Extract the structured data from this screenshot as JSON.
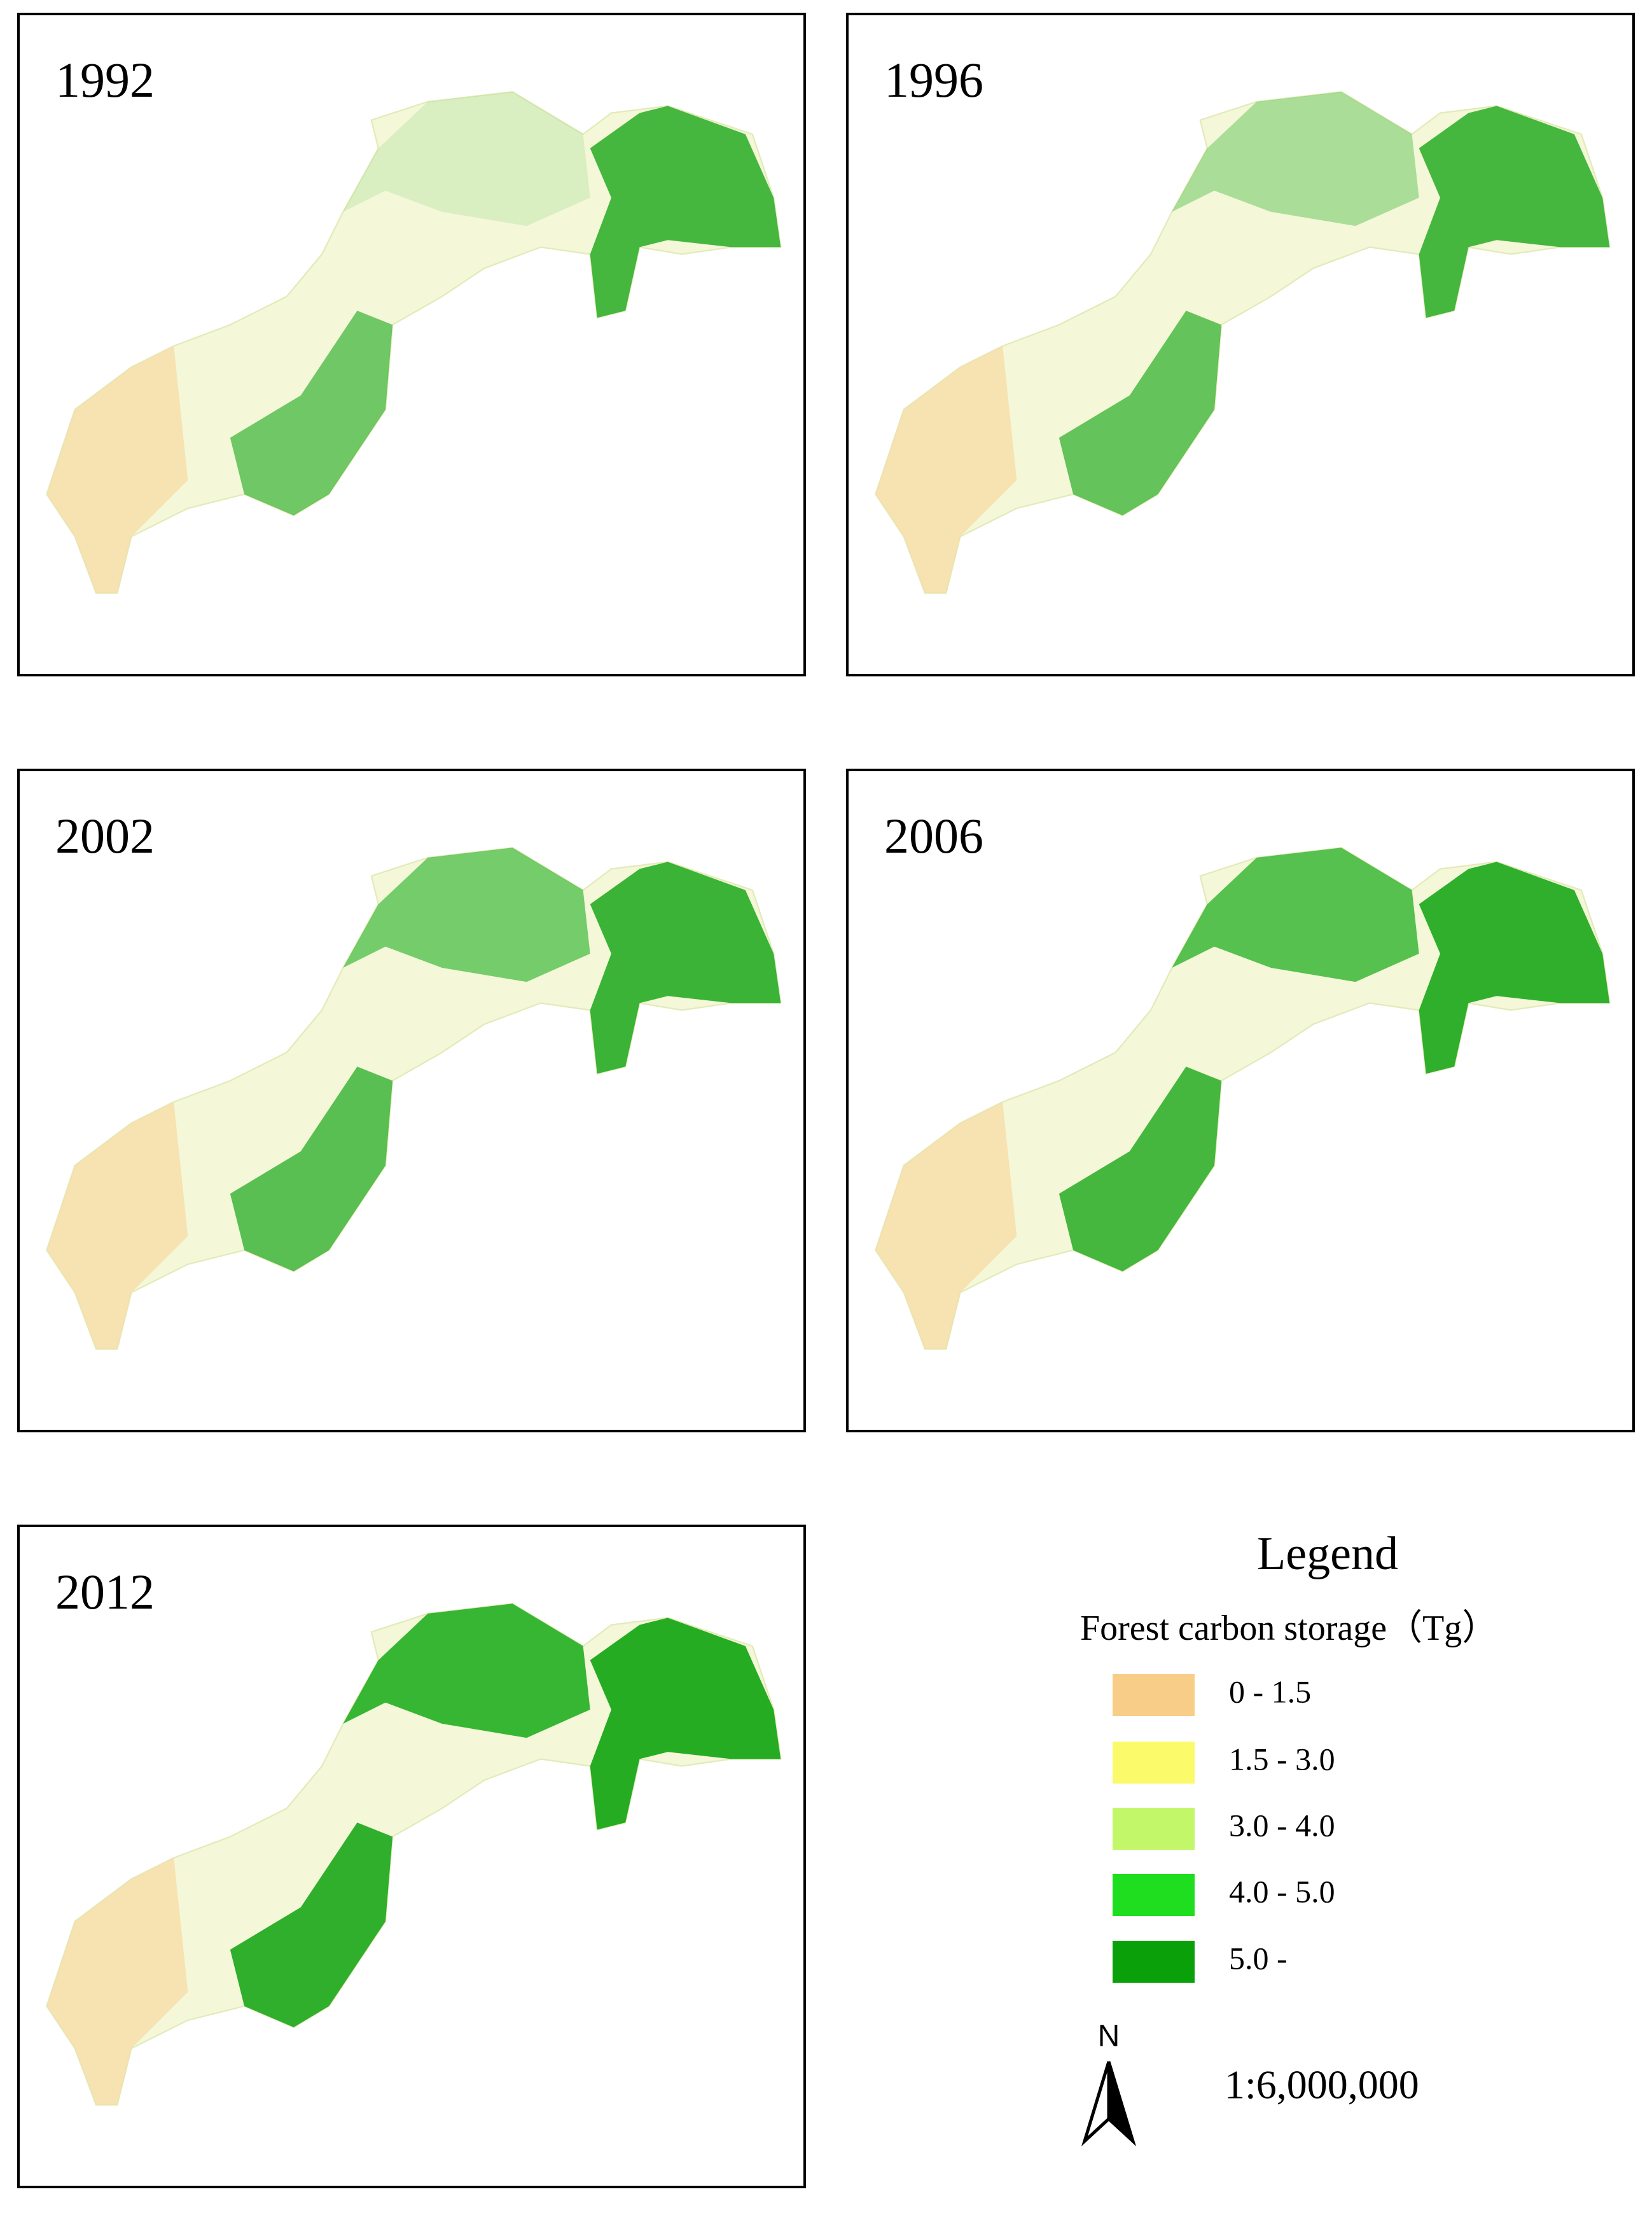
{
  "panels": [
    {
      "year": "1992"
    },
    {
      "year": "1996"
    },
    {
      "year": "2002"
    },
    {
      "year": "2006"
    },
    {
      "year": "2012"
    }
  ],
  "legend": {
    "title": "Legend",
    "subtitle": "Forest carbon storage（Tg）",
    "items": [
      {
        "label": "0 - 1.5",
        "color": "#f8cd87"
      },
      {
        "label": "1.5 - 3.0",
        "color": "#fafa6a"
      },
      {
        "label": "3.0 - 4.0",
        "color": "#c2f76a"
      },
      {
        "label": "4.0 - 5.0",
        "color": "#1fde1f"
      },
      {
        "label": "5.0 -",
        "color": "#0aa00a"
      }
    ]
  },
  "north": "N",
  "scale": "1:6,000,000"
}
